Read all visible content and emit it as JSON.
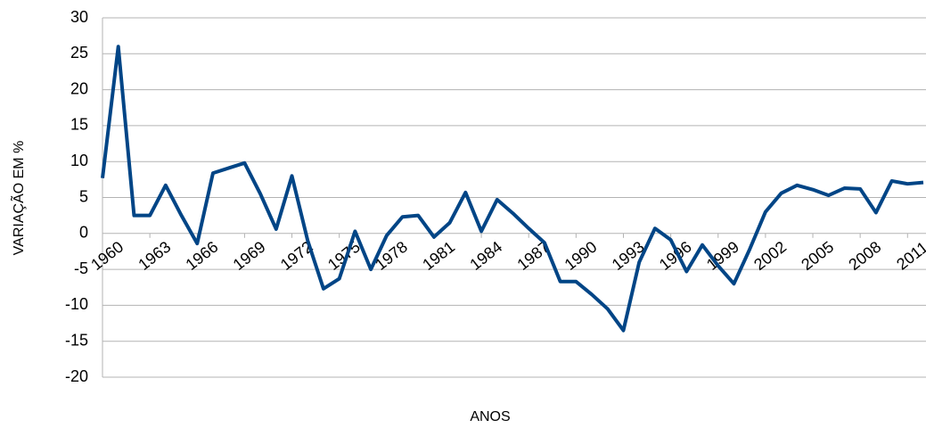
{
  "chart_data": {
    "type": "line",
    "x_label": "ANOS",
    "y_label": "VARIAÇÃO EM %",
    "x": [
      1960,
      1961,
      1962,
      1963,
      1964,
      1965,
      1966,
      1967,
      1968,
      1969,
      1970,
      1971,
      1972,
      1973,
      1974,
      1975,
      1976,
      1977,
      1978,
      1979,
      1980,
      1981,
      1982,
      1983,
      1984,
      1985,
      1986,
      1987,
      1988,
      1989,
      1990,
      1991,
      1992,
      1993,
      1994,
      1995,
      1996,
      1997,
      1998,
      1999,
      2000,
      2001,
      2002,
      2003,
      2004,
      2005,
      2006,
      2007,
      2008,
      2009,
      2010,
      2011,
      2012
    ],
    "series": [
      {
        "color": "#004586",
        "values": [
          7.7,
          26,
          2.5,
          2.5,
          6.7,
          2.5,
          -1.4,
          8.4,
          9.1,
          9.8,
          5.5,
          0.6,
          8.0,
          -1,
          -7.7,
          -6.3,
          0.3,
          -5,
          -0.3,
          2.3,
          2.5,
          -0.5,
          1.5,
          5.7,
          0.3,
          4.7,
          2.8,
          0.7,
          -1.3,
          -6.7,
          -6.7,
          -8.5,
          -10.5,
          -13.5,
          -4,
          0.7,
          -0.9,
          -5.3,
          -1.6,
          -4.5,
          -7,
          -2.2,
          3,
          5.6,
          6.7,
          6.1,
          5.3,
          6.3,
          6.2,
          2.9,
          7.3,
          6.9,
          7.1
        ]
      }
    ],
    "xlim": [
      1960,
      2012
    ],
    "xticks": [
      1960,
      1963,
      1966,
      1969,
      1972,
      1975,
      1978,
      1981,
      1984,
      1987,
      1990,
      1993,
      1996,
      1999,
      2002,
      2005,
      2008,
      2011
    ],
    "ylim": [
      -20,
      30
    ],
    "yticks": [
      -20,
      -15,
      -10,
      -5,
      0,
      5,
      10,
      15,
      20,
      25,
      30
    ],
    "grid": true
  }
}
